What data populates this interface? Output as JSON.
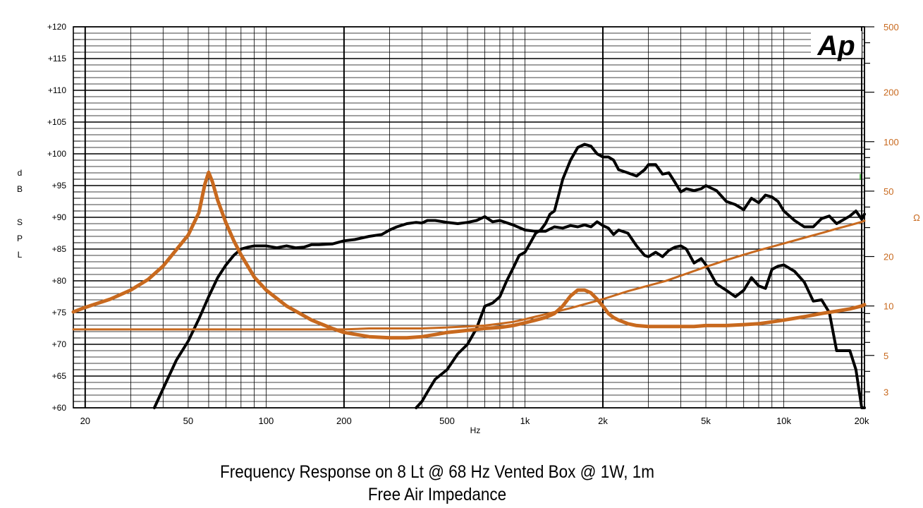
{
  "chart_data": {
    "type": "line",
    "xlabel": "Hz",
    "ylabel": "dB SPL",
    "ylabel_right": "Ω",
    "x_scale": "log",
    "y2_scale": "log",
    "xlim": [
      18,
      20500
    ],
    "ylim": [
      60,
      120
    ],
    "y2lim": [
      2.4,
      500
    ],
    "grid": true,
    "logo_text": "Ap",
    "marker_text": "I",
    "x_ticks": [
      {
        "v": 20,
        "label": "20"
      },
      {
        "v": 50,
        "label": "50"
      },
      {
        "v": 100,
        "label": "100"
      },
      {
        "v": 200,
        "label": "200"
      },
      {
        "v": 500,
        "label": "500"
      },
      {
        "v": 1000,
        "label": "1k"
      },
      {
        "v": 2000,
        "label": "2k"
      },
      {
        "v": 5000,
        "label": "5k"
      },
      {
        "v": 10000,
        "label": "10k"
      },
      {
        "v": 20000,
        "label": "20k"
      }
    ],
    "y_ticks": [
      {
        "v": 120,
        "label": "+120"
      },
      {
        "v": 115,
        "label": "+115"
      },
      {
        "v": 110,
        "label": "+110"
      },
      {
        "v": 105,
        "label": "+105"
      },
      {
        "v": 100,
        "label": "+100"
      },
      {
        "v": 95,
        "label": "+95"
      },
      {
        "v": 90,
        "label": "+90"
      },
      {
        "v": 85,
        "label": "+85"
      },
      {
        "v": 80,
        "label": "+80"
      },
      {
        "v": 75,
        "label": "+75"
      },
      {
        "v": 70,
        "label": "+70"
      },
      {
        "v": 65,
        "label": "+65"
      },
      {
        "v": 60,
        "label": "+60"
      }
    ],
    "y2_ticks": [
      {
        "v": 500,
        "label": "500"
      },
      {
        "v": 200,
        "label": "200"
      },
      {
        "v": 100,
        "label": "100"
      },
      {
        "v": 50,
        "label": "50"
      },
      {
        "v": 20,
        "label": "20"
      },
      {
        "v": 10,
        "label": "10"
      },
      {
        "v": 5,
        "label": "5"
      },
      {
        "v": 3,
        "label": "3"
      }
    ],
    "series": [
      {
        "axis": "left",
        "color": "#000000",
        "width": 4,
        "x": [
          37,
          40,
          45,
          50,
          55,
          60,
          65,
          70,
          75,
          80,
          85,
          90,
          100,
          110,
          120,
          130,
          140,
          150,
          160,
          180,
          200,
          220,
          250,
          280,
          300,
          320,
          350,
          380,
          400,
          420,
          450,
          500,
          550,
          600,
          650,
          700,
          750,
          800,
          900,
          1000,
          1100,
          1200,
          1300,
          1400,
          1500,
          1600,
          1700,
          1800,
          1900,
          2000,
          2100,
          2200,
          2300,
          2500,
          2700,
          2900,
          3000,
          3200,
          3400,
          3600,
          3800,
          4000,
          4200,
          4500,
          4800,
          5000,
          5500,
          6000,
          6500,
          7000,
          7500,
          8000,
          8500,
          9000,
          9500,
          10000,
          11000,
          12000,
          13000,
          14000,
          15000,
          16000,
          18000,
          19000,
          20000,
          20500
        ],
        "y": [
          60,
          63,
          67.5,
          70.5,
          74,
          77.5,
          80.5,
          82.5,
          84,
          85,
          85.3,
          85.5,
          85.5,
          85.2,
          85.5,
          85.2,
          85.3,
          85.7,
          85.7,
          85.8,
          86.3,
          86.5,
          87,
          87.3,
          88,
          88.5,
          89,
          89.2,
          89.1,
          89.5,
          89.5,
          89.2,
          89,
          89.2,
          89.5,
          90.1,
          89.3,
          89.5,
          88.8,
          88,
          87.8,
          87.8,
          88.5,
          88.3,
          88.7,
          88.5,
          88.8,
          88.5,
          89.3,
          88.7,
          88.3,
          87.3,
          88,
          87.5,
          85.5,
          84,
          83.8,
          84.5,
          83.8,
          84.8,
          85.3,
          85.5,
          85,
          82.8,
          83.5,
          82.5,
          79.5,
          78.5,
          77.5,
          78.5,
          80.5,
          79.2,
          78.8,
          81.8,
          82.3,
          82.5,
          81.5,
          79.8,
          76.8,
          77,
          75,
          69,
          69,
          66,
          60,
          60
        ]
      },
      {
        "axis": "left",
        "color": "#000000",
        "width": 4,
        "x": [
          380,
          400,
          420,
          450,
          500,
          550,
          600,
          650,
          700,
          750,
          800,
          850,
          900,
          950,
          1000,
          1050,
          1100,
          1150,
          1200,
          1250,
          1300,
          1350,
          1400,
          1500,
          1600,
          1700,
          1800,
          1900,
          2000,
          2100,
          2200,
          2300,
          2500,
          2700,
          2900,
          3000,
          3200,
          3400,
          3600,
          3800,
          4000,
          4200,
          4500,
          4800,
          5000,
          5500,
          6000,
          6500,
          7000,
          7500,
          8000,
          8500,
          9000,
          9500,
          10000,
          11000,
          12000,
          13000,
          14000,
          15000,
          16000,
          18000,
          19000,
          20000,
          20500
        ],
        "y": [
          60,
          61,
          62.5,
          64.5,
          66,
          68.5,
          70,
          72.5,
          76,
          76.5,
          77.5,
          80,
          82,
          84,
          84.5,
          86,
          87.5,
          88,
          89,
          90.5,
          91,
          93.5,
          96,
          99,
          101,
          101.5,
          101.2,
          100,
          99.5,
          99.5,
          99,
          97.5,
          97,
          96.5,
          97.5,
          98.3,
          98.3,
          96.8,
          97,
          95.5,
          94,
          94.5,
          94.2,
          94.5,
          95,
          94.2,
          92.5,
          92,
          91.2,
          93,
          92.3,
          93.5,
          93.2,
          92.5,
          91,
          89.5,
          88.5,
          88.5,
          89.8,
          90.2,
          89,
          90.2,
          91,
          89.7,
          90.5
        ]
      },
      {
        "axis": "right",
        "color": "#c8691e",
        "width": 5,
        "x": [
          18,
          20,
          25,
          30,
          35,
          40,
          45,
          50,
          55,
          58,
          60,
          62,
          65,
          70,
          75,
          80,
          90,
          100,
          120,
          150,
          180,
          200,
          250,
          300,
          350,
          400,
          450,
          500,
          600,
          700,
          800,
          900,
          1000,
          1100,
          1200,
          1300,
          1400,
          1500,
          1600,
          1700,
          1800,
          1900,
          2000,
          2100,
          2200,
          2300,
          2500,
          2700,
          3000,
          3500,
          4000,
          4500,
          5000,
          6000,
          7000,
          8000,
          9000,
          10000,
          12000,
          14000,
          16000,
          18000,
          20000,
          20500
        ],
        "y": [
          9.2,
          9.8,
          11,
          12.5,
          14.5,
          17.5,
          22,
          27,
          37,
          55,
          65,
          57,
          44,
          32,
          25,
          20.5,
          15,
          12.5,
          10,
          8.2,
          7.3,
          6.9,
          6.5,
          6.4,
          6.4,
          6.5,
          6.7,
          6.9,
          7.1,
          7.3,
          7.4,
          7.6,
          7.9,
          8.2,
          8.5,
          9,
          10,
          11.5,
          12.5,
          12.5,
          12,
          11,
          10,
          9,
          8.5,
          8.2,
          7.8,
          7.6,
          7.5,
          7.5,
          7.5,
          7.5,
          7.6,
          7.6,
          7.7,
          7.8,
          8,
          8.2,
          8.6,
          9,
          9.3,
          9.6,
          10,
          10.2
        ]
      },
      {
        "axis": "right",
        "color": "#c8691e",
        "width": 3,
        "x": [
          18,
          50,
          100,
          200,
          250,
          300,
          400,
          500,
          600,
          700,
          800,
          900,
          1000,
          1200,
          1500,
          2000,
          2500,
          3000,
          3500,
          4000,
          5000,
          6000,
          7000,
          8000,
          10000,
          12000,
          14000,
          16000,
          18000,
          20000,
          20500
        ],
        "y": [
          7.2,
          7.2,
          7.2,
          7.2,
          7.3,
          7.3,
          7.3,
          7.4,
          7.5,
          7.6,
          7.8,
          8,
          8.3,
          8.9,
          9.7,
          11,
          12.3,
          13.3,
          14.2,
          15.3,
          17.3,
          19,
          20.5,
          21.8,
          24,
          26,
          27.8,
          29.5,
          31,
          32.5,
          33
        ]
      }
    ]
  },
  "captions": {
    "line1": "Frequency Response on 8 Lt @ 68 Hz Vented Box @ 1W, 1m",
    "line2": "Free Air Impedance"
  }
}
